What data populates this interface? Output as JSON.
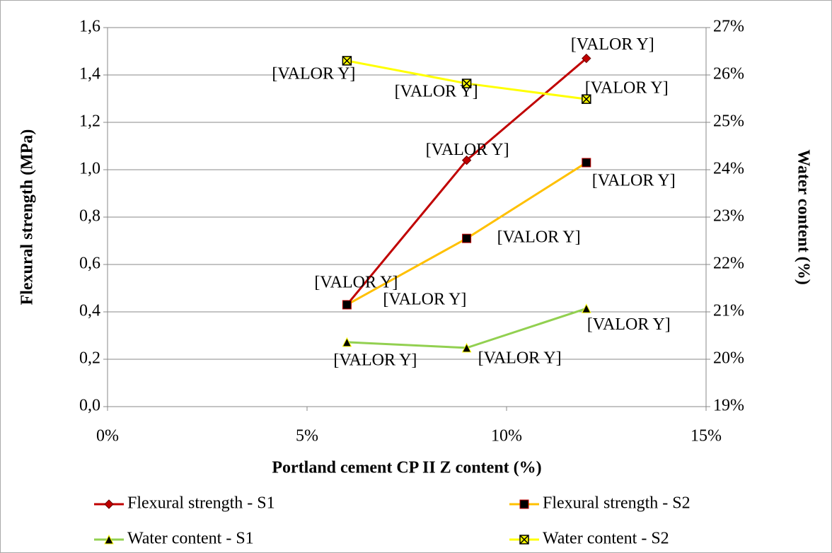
{
  "chart_data": {
    "type": "line",
    "xlabel": "Portland cement  CP II Z content (%)",
    "ylabel": "Flexural strength (MPa)",
    "y2label": "Water content (%)",
    "x": [
      6,
      9,
      12
    ],
    "xlim": [
      0,
      15
    ],
    "xticks": [
      {
        "value": 0,
        "label": "0%"
      },
      {
        "value": 5,
        "label": "5%"
      },
      {
        "value": 10,
        "label": "10%"
      },
      {
        "value": 15,
        "label": "15%"
      }
    ],
    "ylim": [
      0,
      1.6
    ],
    "yticks": [
      {
        "value": 0,
        "label": "0,0"
      },
      {
        "value": 0.2,
        "label": "0,2"
      },
      {
        "value": 0.4,
        "label": "0,4"
      },
      {
        "value": 0.6,
        "label": "0,6"
      },
      {
        "value": 0.8,
        "label": "0,8"
      },
      {
        "value": 1.0,
        "label": "1,0"
      },
      {
        "value": 1.2,
        "label": "1,2"
      },
      {
        "value": 1.4,
        "label": "1,4"
      },
      {
        "value": 1.6,
        "label": "1,6"
      }
    ],
    "y2lim": [
      19,
      27
    ],
    "y2ticks": [
      {
        "value": 19,
        "label": "19%"
      },
      {
        "value": 20,
        "label": "20%"
      },
      {
        "value": 21,
        "label": "21%"
      },
      {
        "value": 22,
        "label": "22%"
      },
      {
        "value": 23,
        "label": "23%"
      },
      {
        "value": 24,
        "label": "24%"
      },
      {
        "value": 25,
        "label": "25%"
      },
      {
        "value": 26,
        "label": "26%"
      },
      {
        "value": 27,
        "label": "27%"
      }
    ],
    "grid": true,
    "legend": "bottom",
    "series": [
      {
        "name": "Flexural strength - S1",
        "color": "#c00000",
        "marker": "diamond",
        "values": [
          0.43,
          1.04,
          1.47
        ],
        "value_labels": [
          "[VALOR Y]",
          "[VALOR Y]",
          "[VALOR Y]"
        ]
      },
      {
        "name": "Flexural strength - S2",
        "color": "#ffc000",
        "marker": "square",
        "values": [
          0.43,
          0.71,
          1.03
        ],
        "value_labels": [
          "[VALOR Y]",
          "[VALOR Y]",
          "[VALOR Y]"
        ]
      },
      {
        "name": "Water content - S1",
        "color": "#92d050",
        "marker": "triangle",
        "axis": "y2",
        "values": [
          20.36,
          20.24,
          21.07
        ],
        "value_labels": [
          "[VALOR Y]",
          "[VALOR Y]",
          "[VALOR Y]"
        ]
      },
      {
        "name": "Water content - S2",
        "color": "#ffff00",
        "marker": "boxx",
        "axis": "y2",
        "values": [
          26.3,
          25.82,
          25.49
        ],
        "value_labels": [
          "[VALOR Y]",
          "[VALOR Y]",
          "[VALOR Y]"
        ]
      }
    ]
  }
}
